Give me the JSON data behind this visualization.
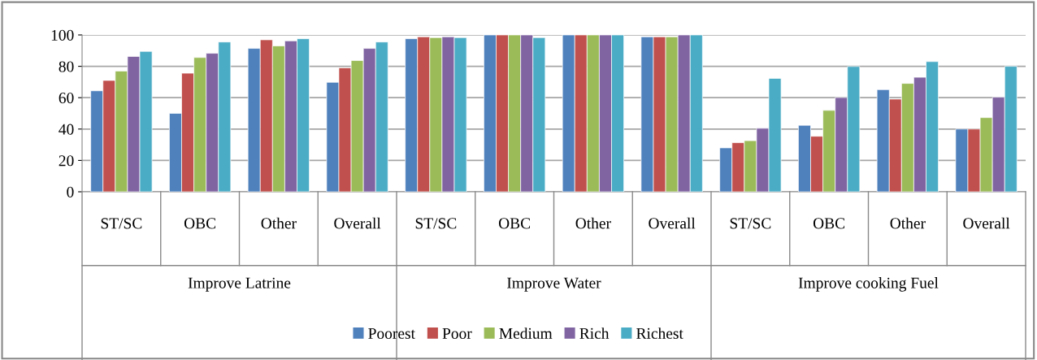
{
  "chart_data": {
    "type": "bar",
    "categories": [
      "ST/SC",
      "OBC",
      "Other",
      "Overall",
      "ST/SC",
      "OBC",
      "Other",
      "Overall",
      "ST/SC",
      "OBC",
      "Other",
      "Overall"
    ],
    "annotations": [
      "Improve Latrine",
      "Improve Water",
      "Improve cooking Fuel"
    ],
    "series": [
      {
        "name": "Poorest",
        "color": "#4f81bd",
        "values": [
          64.4,
          50,
          91.4,
          69.8,
          97.6,
          100,
          100,
          98.8,
          28,
          42.4,
          65.1,
          40
        ]
      },
      {
        "name": "Poor",
        "color": "#c0504d",
        "values": [
          71,
          75.6,
          96.9,
          79,
          98.8,
          100,
          100,
          98.8,
          31.3,
          35.4,
          59.1,
          40
        ]
      },
      {
        "name": "Medium",
        "color": "#9bbb59",
        "values": [
          77,
          85.6,
          93,
          83.7,
          98.3,
          100,
          100,
          98.8,
          32.6,
          51.9,
          69.1,
          47.3
        ]
      },
      {
        "name": "Rich",
        "color": "#8064a2",
        "values": [
          86.3,
          88.3,
          96.2,
          91.4,
          98.8,
          100,
          100,
          100,
          40.5,
          60.1,
          73,
          60.3
        ]
      },
      {
        "name": "Richest",
        "color": "#4bacc6",
        "values": [
          89.5,
          95.5,
          97.6,
          95.5,
          98.3,
          98.3,
          100,
          100,
          72.3,
          79.9,
          83,
          80
        ]
      }
    ],
    "ylim": [
      0,
      100
    ],
    "yticks": [
      0,
      20,
      40,
      60,
      80,
      100
    ],
    "grid": "y",
    "legend": "bottom"
  }
}
